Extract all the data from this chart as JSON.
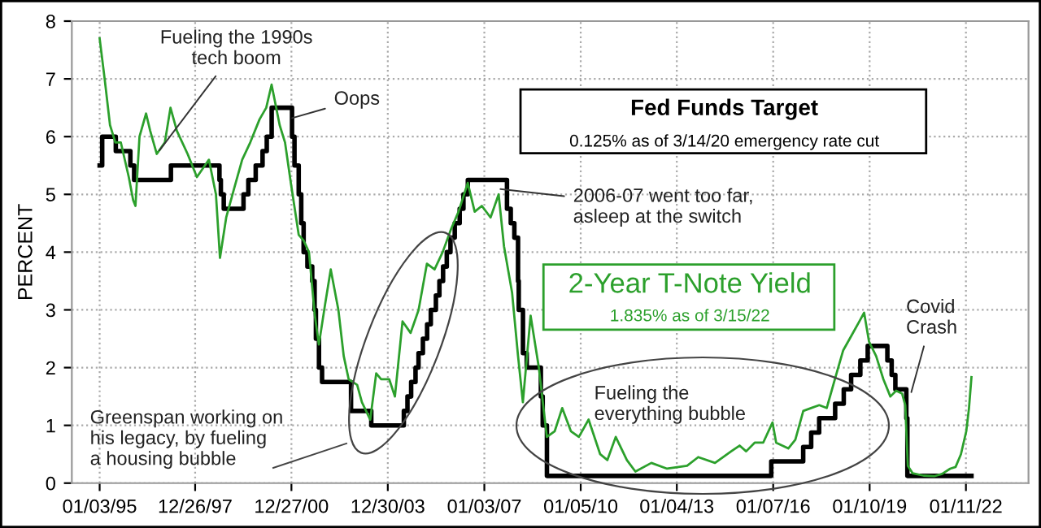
{
  "chart_data": {
    "type": "line",
    "ylabel": "PERCENT",
    "xlim": [
      "1994-02-20",
      "2023-12-25"
    ],
    "ylim": [
      0,
      8
    ],
    "yticks": [
      0,
      1,
      2,
      3,
      4,
      5,
      6,
      7,
      8
    ],
    "xticks": [
      {
        "value": "1995-01-03",
        "label": "01/03/95"
      },
      {
        "value": "1997-12-26",
        "label": "12/26/97"
      },
      {
        "value": "2000-12-27",
        "label": "12/27/00"
      },
      {
        "value": "2003-12-30",
        "label": "12/30/03"
      },
      {
        "value": "2007-01-03",
        "label": "01/03/07"
      },
      {
        "value": "2010-01-05",
        "label": "01/05/10"
      },
      {
        "value": "2013-01-04",
        "label": "01/04/13"
      },
      {
        "value": "2016-01-07",
        "label": "01/07/16"
      },
      {
        "value": "2019-01-10",
        "label": "01/10/19"
      },
      {
        "value": "2022-01-11",
        "label": "01/11/22"
      }
    ],
    "grid": true,
    "legend": false,
    "marker": "none",
    "line_style": "solid",
    "series": [
      {
        "name": "2-Year T-Note Yield",
        "color": "#2ca02c",
        "x": [
          "1995-01-03",
          "1995-03-01",
          "1995-05-01",
          "1995-07-01",
          "1995-09-01",
          "1995-12-01",
          "1996-01-20",
          "1996-02-15",
          "1996-04-01",
          "1996-06-15",
          "1996-08-01",
          "1996-10-15",
          "1997-01-15",
          "1997-03-20",
          "1997-06-01",
          "1997-10-01",
          "1998-01-15",
          "1998-06-01",
          "1998-08-20",
          "1998-10-05",
          "1998-12-15",
          "1999-03-15",
          "1999-06-15",
          "1999-09-15",
          "1999-12-30",
          "2000-03-15",
          "2000-05-15",
          "2000-08-15",
          "2000-10-15",
          "2000-12-20",
          "2001-03-20",
          "2001-05-15",
          "2001-07-15",
          "2001-09-20",
          "2001-11-05",
          "2002-01-15",
          "2002-03-20",
          "2002-06-15",
          "2002-08-15",
          "2002-10-10",
          "2003-01-15",
          "2003-03-10",
          "2003-06-13",
          "2003-08-20",
          "2003-10-15",
          "2004-01-15",
          "2004-03-20",
          "2004-06-15",
          "2004-09-15",
          "2004-12-15",
          "2005-03-20",
          "2005-06-15",
          "2005-09-15",
          "2005-12-20",
          "2006-03-15",
          "2006-06-28",
          "2006-09-15",
          "2006-12-05",
          "2007-03-15",
          "2007-06-15",
          "2007-08-15",
          "2007-11-15",
          "2008-01-22",
          "2008-03-17",
          "2008-06-13",
          "2008-09-15",
          "2008-12-15",
          "2009-03-15",
          "2009-06-08",
          "2009-09-15",
          "2009-12-15",
          "2010-04-05",
          "2010-08-15",
          "2010-11-05",
          "2011-02-08",
          "2011-06-15",
          "2011-09-20",
          "2012-03-20",
          "2012-09-15",
          "2013-05-01",
          "2013-09-05",
          "2014-03-15",
          "2014-09-15",
          "2014-12-20",
          "2015-03-05",
          "2015-06-10",
          "2015-09-15",
          "2015-12-30",
          "2016-02-10",
          "2016-06-27",
          "2016-09-15",
          "2016-12-15",
          "2017-03-13",
          "2017-06-15",
          "2017-09-08",
          "2017-12-29",
          "2018-03-15",
          "2018-06-15",
          "2018-09-15",
          "2018-11-08",
          "2019-01-03",
          "2019-03-25",
          "2019-06-15",
          "2019-09-03",
          "2019-11-08",
          "2020-01-15",
          "2020-02-20",
          "2020-03-20",
          "2020-05-15",
          "2020-09-15",
          "2021-01-15",
          "2021-04-15",
          "2021-07-15",
          "2021-09-15",
          "2021-11-15",
          "2022-01-15",
          "2022-02-15",
          "2022-03-15"
        ],
        "values": [
          7.7,
          7.0,
          6.2,
          5.9,
          5.9,
          5.3,
          4.9,
          4.8,
          6.0,
          6.4,
          6.1,
          5.7,
          5.9,
          6.5,
          6.1,
          5.7,
          5.3,
          5.6,
          5.0,
          3.9,
          4.6,
          5.1,
          5.6,
          5.9,
          6.3,
          6.5,
          6.9,
          6.2,
          5.9,
          5.2,
          4.3,
          4.2,
          4.0,
          2.9,
          2.4,
          3.1,
          3.7,
          3.0,
          2.2,
          1.8,
          1.7,
          1.4,
          1.1,
          1.9,
          1.8,
          1.8,
          1.5,
          2.8,
          2.6,
          3.0,
          3.8,
          3.7,
          4.0,
          4.4,
          4.7,
          5.2,
          4.7,
          4.8,
          4.6,
          5.0,
          4.1,
          3.3,
          2.2,
          1.4,
          2.9,
          2.0,
          0.8,
          0.9,
          1.3,
          0.9,
          0.8,
          1.1,
          0.5,
          0.4,
          0.8,
          0.4,
          0.2,
          0.35,
          0.25,
          0.3,
          0.45,
          0.35,
          0.55,
          0.65,
          0.55,
          0.7,
          0.7,
          1.05,
          0.7,
          0.6,
          0.75,
          1.25,
          1.3,
          1.35,
          1.3,
          1.9,
          2.3,
          2.55,
          2.8,
          2.95,
          2.45,
          2.2,
          1.8,
          1.5,
          1.6,
          1.55,
          1.35,
          0.3,
          0.17,
          0.13,
          0.12,
          0.16,
          0.25,
          0.28,
          0.5,
          0.9,
          1.3,
          1.835
        ]
      },
      {
        "name": "Fed Funds Target",
        "type": "step",
        "color": "#000000",
        "x": [
          "1995-01-03",
          "1995-02-01",
          "1995-07-06",
          "1995-12-19",
          "1996-01-31",
          "1997-03-25",
          "1998-09-29",
          "1998-10-15",
          "1998-11-17",
          "1999-06-30",
          "1999-08-24",
          "1999-11-16",
          "2000-02-02",
          "2000-03-21",
          "2000-05-16",
          "2001-01-03",
          "2001-01-31",
          "2001-03-20",
          "2001-04-18",
          "2001-05-15",
          "2001-06-27",
          "2001-08-21",
          "2001-09-17",
          "2001-10-02",
          "2001-11-06",
          "2001-12-11",
          "2002-11-06",
          "2003-06-25",
          "2004-06-30",
          "2004-08-10",
          "2004-09-21",
          "2004-11-10",
          "2004-12-14",
          "2005-02-02",
          "2005-03-22",
          "2005-05-03",
          "2005-06-30",
          "2005-08-09",
          "2005-09-20",
          "2005-11-01",
          "2005-12-13",
          "2006-01-31",
          "2006-03-28",
          "2006-05-10",
          "2006-06-29",
          "2007-09-18",
          "2007-10-31",
          "2007-12-11",
          "2008-01-22",
          "2008-01-30",
          "2008-03-18",
          "2008-04-30",
          "2008-10-08",
          "2008-10-29",
          "2008-12-16",
          "2015-12-16",
          "2016-12-14",
          "2017-03-15",
          "2017-06-14",
          "2017-12-13",
          "2018-03-21",
          "2018-06-13",
          "2018-09-26",
          "2018-12-19",
          "2019-07-31",
          "2019-09-18",
          "2019-10-30",
          "2020-03-03",
          "2020-03-15",
          "2022-03-15"
        ],
        "values": [
          5.5,
          6.0,
          5.75,
          5.5,
          5.25,
          5.5,
          5.25,
          5.0,
          4.75,
          5.0,
          5.25,
          5.5,
          5.75,
          6.0,
          6.5,
          6.0,
          5.5,
          5.0,
          4.5,
          4.0,
          3.75,
          3.5,
          3.0,
          2.5,
          2.0,
          1.75,
          1.25,
          1.0,
          1.25,
          1.5,
          1.75,
          2.0,
          2.25,
          2.5,
          2.75,
          3.0,
          3.25,
          3.5,
          3.75,
          4.0,
          4.25,
          4.5,
          4.75,
          5.0,
          5.25,
          4.75,
          4.5,
          4.25,
          3.5,
          3.0,
          2.25,
          2.0,
          1.5,
          1.0,
          0.125,
          0.375,
          0.625,
          0.875,
          1.125,
          1.375,
          1.625,
          1.875,
          2.125,
          2.375,
          2.125,
          1.875,
          1.625,
          1.125,
          0.125,
          0.125
        ]
      }
    ],
    "annotations": [
      {
        "text": "Fueling the 1990s\ntech boom",
        "x": "1996-10-15",
        "y": 5.7
      },
      {
        "text": "Oops",
        "x": "2000-11-15",
        "y": 6.3
      },
      {
        "text": "2006-07 went too far,\nasleep at the switch",
        "x": "2007-05-15",
        "y": 5.1
      },
      "Greenspan working on\nhis legacy, by fueling\na housing bubble",
      "Fueling the\neverything bubble",
      {
        "text": "Covid\nCrash",
        "x": "2020-04-15",
        "y": 1.5
      },
      "0.125% as of 3/14/20 emergency rate cut",
      "1.835% as of 3/15/22"
    ]
  }
}
